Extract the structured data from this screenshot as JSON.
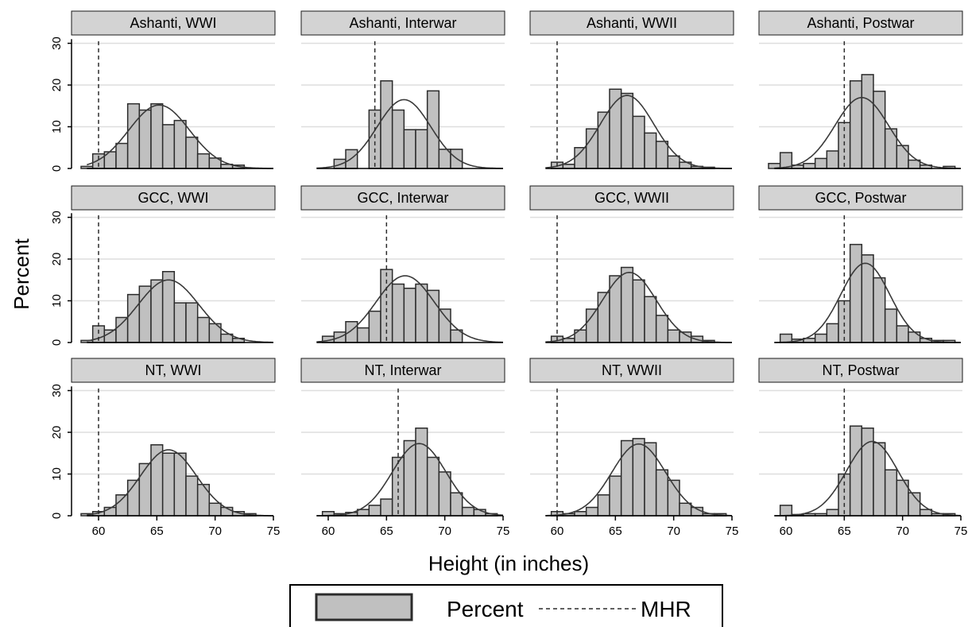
{
  "chart_data": {
    "type": "bar",
    "xlabel": "Height (in inches)",
    "ylabel": "Percent",
    "xlim": [
      58.5,
      75.5
    ],
    "ylim": [
      0,
      33
    ],
    "xticks": [
      "60",
      "65",
      "70",
      "75"
    ],
    "yticks": [
      "0",
      "10",
      "20",
      "30"
    ],
    "bin_width": 1,
    "grid": "horizontal",
    "legend": {
      "position": "bottom",
      "items": [
        "Percent",
        "MHR"
      ]
    },
    "panels": [
      {
        "title": "Ashanti, WWI",
        "mhr": 60,
        "fit": {
          "mean": 65.2,
          "sd": 2.6,
          "peak": 15.2
        },
        "bins": [
          {
            "x": 59,
            "y": 0.5
          },
          {
            "x": 60,
            "y": 3.5
          },
          {
            "x": 61,
            "y": 4.0
          },
          {
            "x": 62,
            "y": 6.0
          },
          {
            "x": 63,
            "y": 15.5
          },
          {
            "x": 64,
            "y": 14.0
          },
          {
            "x": 65,
            "y": 15.5
          },
          {
            "x": 66,
            "y": 10.5
          },
          {
            "x": 67,
            "y": 11.5
          },
          {
            "x": 68,
            "y": 7.5
          },
          {
            "x": 69,
            "y": 3.5
          },
          {
            "x": 70,
            "y": 2.5
          },
          {
            "x": 71,
            "y": 1.0
          },
          {
            "x": 72,
            "y": 0.8
          }
        ]
      },
      {
        "title": "Ashanti, Interwar",
        "mhr": 64,
        "fit": {
          "mean": 66.5,
          "sd": 2.3,
          "peak": 16.5
        },
        "bins": [
          {
            "x": 61,
            "y": 2.2
          },
          {
            "x": 62,
            "y": 4.5
          },
          {
            "x": 64,
            "y": 14.0
          },
          {
            "x": 65,
            "y": 21.0
          },
          {
            "x": 66,
            "y": 14.0
          },
          {
            "x": 67,
            "y": 9.3
          },
          {
            "x": 68,
            "y": 9.3
          },
          {
            "x": 69,
            "y": 18.6
          },
          {
            "x": 70,
            "y": 4.6
          },
          {
            "x": 71,
            "y": 4.6
          }
        ]
      },
      {
        "title": "Ashanti, WWII",
        "mhr": 60,
        "fit": {
          "mean": 66.0,
          "sd": 2.3,
          "peak": 17.5
        },
        "bins": [
          {
            "x": 60,
            "y": 1.5
          },
          {
            "x": 61,
            "y": 1.0
          },
          {
            "x": 62,
            "y": 5.0
          },
          {
            "x": 63,
            "y": 9.5
          },
          {
            "x": 64,
            "y": 13.5
          },
          {
            "x": 65,
            "y": 19.0
          },
          {
            "x": 66,
            "y": 18.0
          },
          {
            "x": 67,
            "y": 12.5
          },
          {
            "x": 68,
            "y": 8.5
          },
          {
            "x": 69,
            "y": 6.5
          },
          {
            "x": 70,
            "y": 3.0
          },
          {
            "x": 71,
            "y": 1.5
          },
          {
            "x": 72,
            "y": 0.5
          },
          {
            "x": 73,
            "y": 0.3
          }
        ]
      },
      {
        "title": "Ashanti, Postwar",
        "mhr": 65,
        "fit": {
          "mean": 66.5,
          "sd": 2.3,
          "peak": 17.0
        },
        "bins": [
          {
            "x": 59,
            "y": 1.2
          },
          {
            "x": 60,
            "y": 3.8
          },
          {
            "x": 61,
            "y": 0.8
          },
          {
            "x": 62,
            "y": 1.2
          },
          {
            "x": 63,
            "y": 2.4
          },
          {
            "x": 64,
            "y": 4.2
          },
          {
            "x": 65,
            "y": 11.0
          },
          {
            "x": 66,
            "y": 21.0
          },
          {
            "x": 67,
            "y": 22.5
          },
          {
            "x": 68,
            "y": 18.5
          },
          {
            "x": 69,
            "y": 9.5
          },
          {
            "x": 70,
            "y": 5.5
          },
          {
            "x": 71,
            "y": 2.0
          },
          {
            "x": 72,
            "y": 0.8
          },
          {
            "x": 74,
            "y": 0.5
          }
        ]
      },
      {
        "title": "GCC, WWI",
        "mhr": 60,
        "fit": {
          "mean": 66.0,
          "sd": 2.6,
          "peak": 15.0
        },
        "bins": [
          {
            "x": 59,
            "y": 0.5
          },
          {
            "x": 60,
            "y": 4.0
          },
          {
            "x": 61,
            "y": 3.0
          },
          {
            "x": 62,
            "y": 6.0
          },
          {
            "x": 63,
            "y": 11.5
          },
          {
            "x": 64,
            "y": 13.5
          },
          {
            "x": 65,
            "y": 15.0
          },
          {
            "x": 66,
            "y": 17.0
          },
          {
            "x": 67,
            "y": 9.5
          },
          {
            "x": 68,
            "y": 9.5
          },
          {
            "x": 69,
            "y": 6.0
          },
          {
            "x": 70,
            "y": 4.5
          },
          {
            "x": 71,
            "y": 2.0
          },
          {
            "x": 72,
            "y": 1.0
          }
        ]
      },
      {
        "title": "GCC, Interwar",
        "mhr": 65,
        "fit": {
          "mean": 66.6,
          "sd": 2.5,
          "peak": 16.0
        },
        "bins": [
          {
            "x": 60,
            "y": 1.5
          },
          {
            "x": 61,
            "y": 2.5
          },
          {
            "x": 62,
            "y": 5.0
          },
          {
            "x": 63,
            "y": 3.5
          },
          {
            "x": 64,
            "y": 7.5
          },
          {
            "x": 65,
            "y": 17.5
          },
          {
            "x": 66,
            "y": 14.0
          },
          {
            "x": 67,
            "y": 13.0
          },
          {
            "x": 68,
            "y": 14.0
          },
          {
            "x": 69,
            "y": 12.5
          },
          {
            "x": 70,
            "y": 8.0
          },
          {
            "x": 71,
            "y": 3.0
          }
        ]
      },
      {
        "title": "GCC, WWII",
        "mhr": 60,
        "fit": {
          "mean": 66.2,
          "sd": 2.3,
          "peak": 16.8
        },
        "bins": [
          {
            "x": 60,
            "y": 1.5
          },
          {
            "x": 61,
            "y": 1.0
          },
          {
            "x": 62,
            "y": 3.0
          },
          {
            "x": 63,
            "y": 8.0
          },
          {
            "x": 64,
            "y": 12.0
          },
          {
            "x": 65,
            "y": 16.0
          },
          {
            "x": 66,
            "y": 18.0
          },
          {
            "x": 67,
            "y": 15.0
          },
          {
            "x": 68,
            "y": 11.0
          },
          {
            "x": 69,
            "y": 6.5
          },
          {
            "x": 70,
            "y": 3.0
          },
          {
            "x": 71,
            "y": 2.5
          },
          {
            "x": 72,
            "y": 1.5
          },
          {
            "x": 73,
            "y": 0.5
          }
        ]
      },
      {
        "title": "GCC, Postwar",
        "mhr": 65,
        "fit": {
          "mean": 66.8,
          "sd": 2.1,
          "peak": 19.0
        },
        "bins": [
          {
            "x": 60,
            "y": 2.0
          },
          {
            "x": 61,
            "y": 0.8
          },
          {
            "x": 62,
            "y": 1.0
          },
          {
            "x": 63,
            "y": 2.0
          },
          {
            "x": 64,
            "y": 4.5
          },
          {
            "x": 65,
            "y": 10.0
          },
          {
            "x": 66,
            "y": 23.5
          },
          {
            "x": 67,
            "y": 21.0
          },
          {
            "x": 68,
            "y": 15.5
          },
          {
            "x": 69,
            "y": 8.0
          },
          {
            "x": 70,
            "y": 4.0
          },
          {
            "x": 71,
            "y": 2.5
          },
          {
            "x": 72,
            "y": 1.0
          },
          {
            "x": 73,
            "y": 0.5
          },
          {
            "x": 74,
            "y": 0.5
          }
        ]
      },
      {
        "title": "NT, WWI",
        "mhr": 60,
        "fit": {
          "mean": 66.0,
          "sd": 2.4,
          "peak": 15.8
        },
        "bins": [
          {
            "x": 59,
            "y": 0.5
          },
          {
            "x": 60,
            "y": 1.0
          },
          {
            "x": 61,
            "y": 2.0
          },
          {
            "x": 62,
            "y": 5.0
          },
          {
            "x": 63,
            "y": 8.5
          },
          {
            "x": 64,
            "y": 12.5
          },
          {
            "x": 65,
            "y": 17.0
          },
          {
            "x": 66,
            "y": 15.0
          },
          {
            "x": 67,
            "y": 15.0
          },
          {
            "x": 68,
            "y": 9.5
          },
          {
            "x": 69,
            "y": 7.5
          },
          {
            "x": 70,
            "y": 3.0
          },
          {
            "x": 71,
            "y": 2.0
          },
          {
            "x": 72,
            "y": 1.0
          },
          {
            "x": 73,
            "y": 0.5
          }
        ]
      },
      {
        "title": "NT, Interwar",
        "mhr": 66,
        "fit": {
          "mean": 67.8,
          "sd": 2.3,
          "peak": 17.3
        },
        "bins": [
          {
            "x": 60,
            "y": 1.0
          },
          {
            "x": 61,
            "y": 0.5
          },
          {
            "x": 62,
            "y": 0.8
          },
          {
            "x": 63,
            "y": 1.5
          },
          {
            "x": 64,
            "y": 2.5
          },
          {
            "x": 65,
            "y": 4.0
          },
          {
            "x": 66,
            "y": 14.0
          },
          {
            "x": 67,
            "y": 18.0
          },
          {
            "x": 68,
            "y": 21.0
          },
          {
            "x": 69,
            "y": 14.0
          },
          {
            "x": 70,
            "y": 10.5
          },
          {
            "x": 71,
            "y": 5.5
          },
          {
            "x": 72,
            "y": 2.0
          },
          {
            "x": 73,
            "y": 1.5
          },
          {
            "x": 74,
            "y": 0.5
          }
        ]
      },
      {
        "title": "NT, WWII",
        "mhr": 60,
        "fit": {
          "mean": 67.0,
          "sd": 2.3,
          "peak": 17.2
        },
        "bins": [
          {
            "x": 60,
            "y": 1.0
          },
          {
            "x": 61,
            "y": 0.5
          },
          {
            "x": 62,
            "y": 1.0
          },
          {
            "x": 63,
            "y": 2.0
          },
          {
            "x": 64,
            "y": 5.0
          },
          {
            "x": 65,
            "y": 9.5
          },
          {
            "x": 66,
            "y": 18.0
          },
          {
            "x": 67,
            "y": 18.5
          },
          {
            "x": 68,
            "y": 17.5
          },
          {
            "x": 69,
            "y": 11.0
          },
          {
            "x": 70,
            "y": 8.5
          },
          {
            "x": 71,
            "y": 3.0
          },
          {
            "x": 72,
            "y": 2.0
          },
          {
            "x": 73,
            "y": 0.5
          },
          {
            "x": 74,
            "y": 0.5
          }
        ]
      },
      {
        "title": "NT, Postwar",
        "mhr": 65,
        "fit": {
          "mean": 67.4,
          "sd": 2.2,
          "peak": 17.8
        },
        "bins": [
          {
            "x": 60,
            "y": 2.5
          },
          {
            "x": 61,
            "y": 0.3
          },
          {
            "x": 62,
            "y": 0.5
          },
          {
            "x": 63,
            "y": 0.5
          },
          {
            "x": 64,
            "y": 1.5
          },
          {
            "x": 65,
            "y": 10.0
          },
          {
            "x": 66,
            "y": 21.5
          },
          {
            "x": 67,
            "y": 21.0
          },
          {
            "x": 68,
            "y": 17.5
          },
          {
            "x": 69,
            "y": 11.0
          },
          {
            "x": 70,
            "y": 8.5
          },
          {
            "x": 71,
            "y": 5.5
          },
          {
            "x": 72,
            "y": 1.5
          },
          {
            "x": 73,
            "y": 0.5
          },
          {
            "x": 74,
            "y": 0.5
          }
        ]
      }
    ]
  },
  "colors": {
    "bar_fill": "#c0c0c0",
    "bar_stroke": "#2b2b2b",
    "strip_fill": "#d3d3d3",
    "grid": "#dedede",
    "curve": "#3a3a3a",
    "mhr_line": "#2b2b2b"
  }
}
